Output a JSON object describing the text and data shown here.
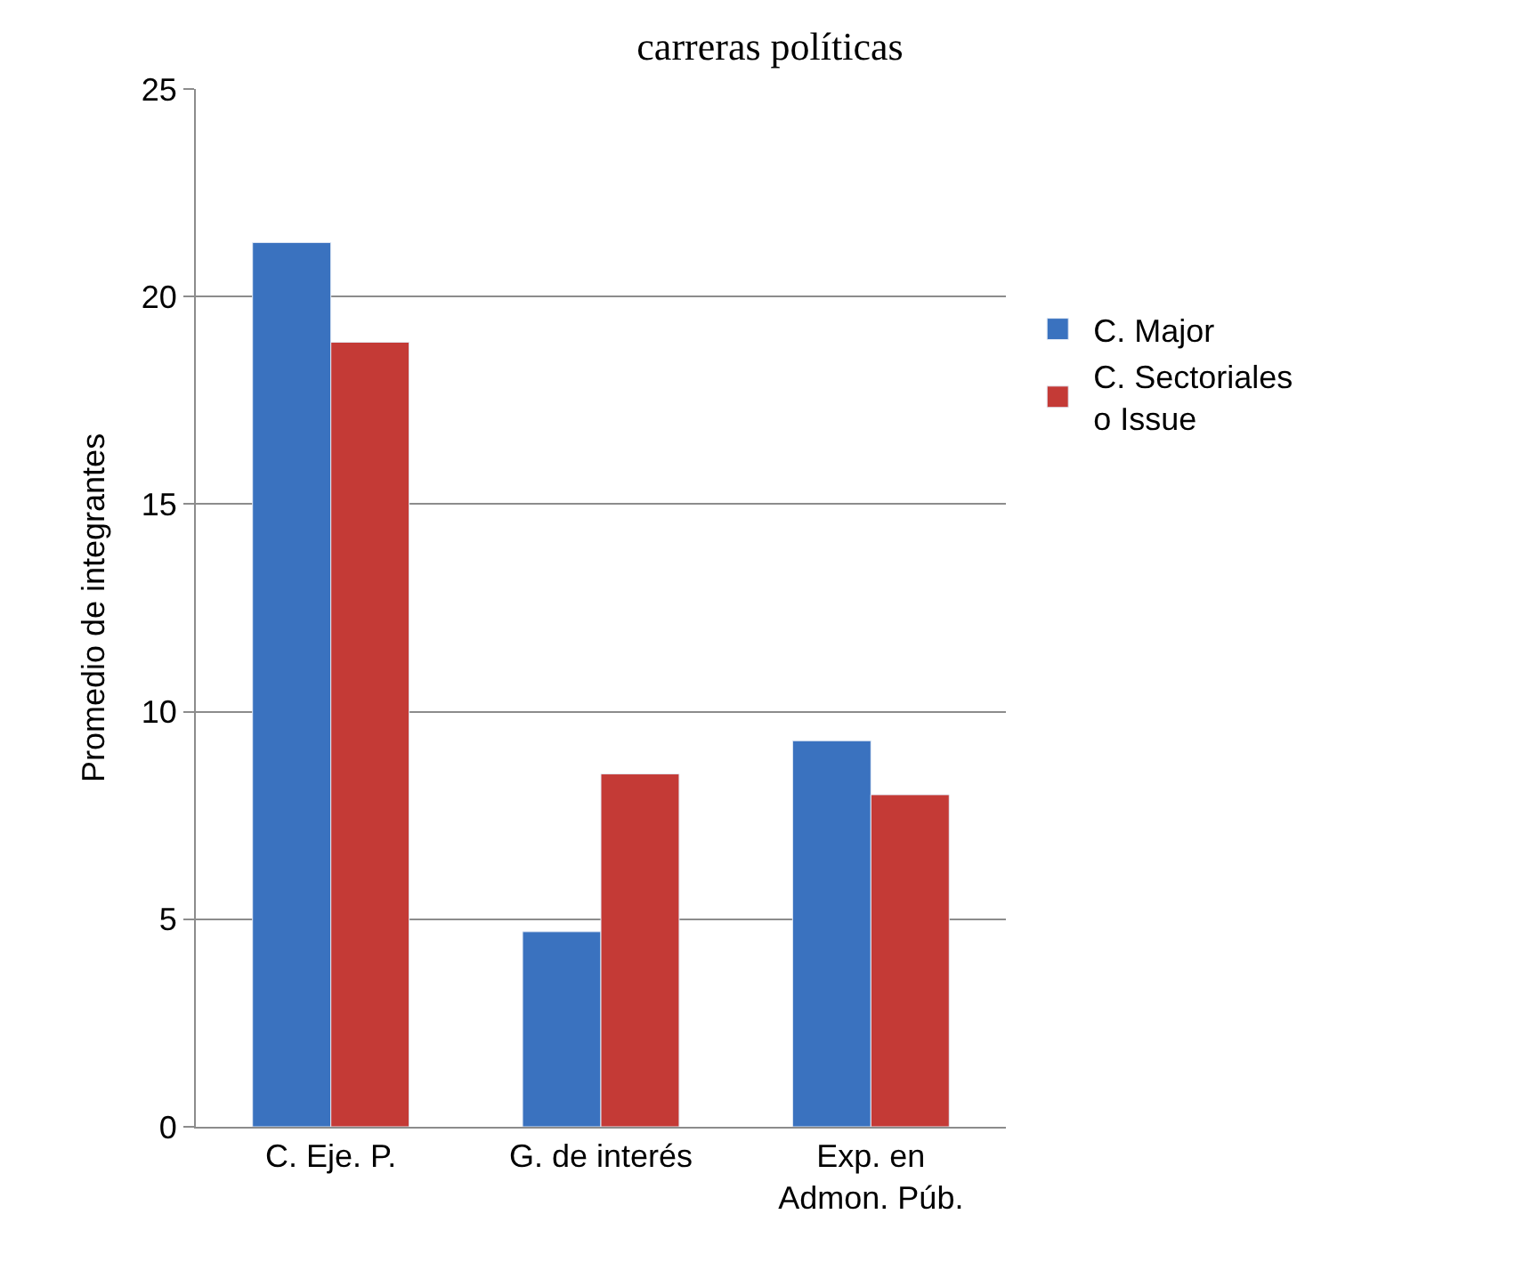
{
  "chart_data": {
    "type": "bar",
    "title": "carreras políticas",
    "ylabel": "Promedio de integrantes",
    "categories": [
      "C. Eje. P.",
      "G. de interés",
      "Exp. en\nAdmon. Púb."
    ],
    "series": [
      {
        "name": "C. Major",
        "color": "#3a72bf",
        "values": [
          21.3,
          4.7,
          9.3
        ]
      },
      {
        "name": "C. Sectoriales\no Issue",
        "color": "#c43a36",
        "values": [
          18.9,
          8.5,
          8.0
        ]
      }
    ],
    "ylim": [
      0,
      25
    ],
    "yticks": [
      0,
      5,
      10,
      15,
      20,
      25
    ],
    "grid": "y",
    "legend": "right"
  }
}
